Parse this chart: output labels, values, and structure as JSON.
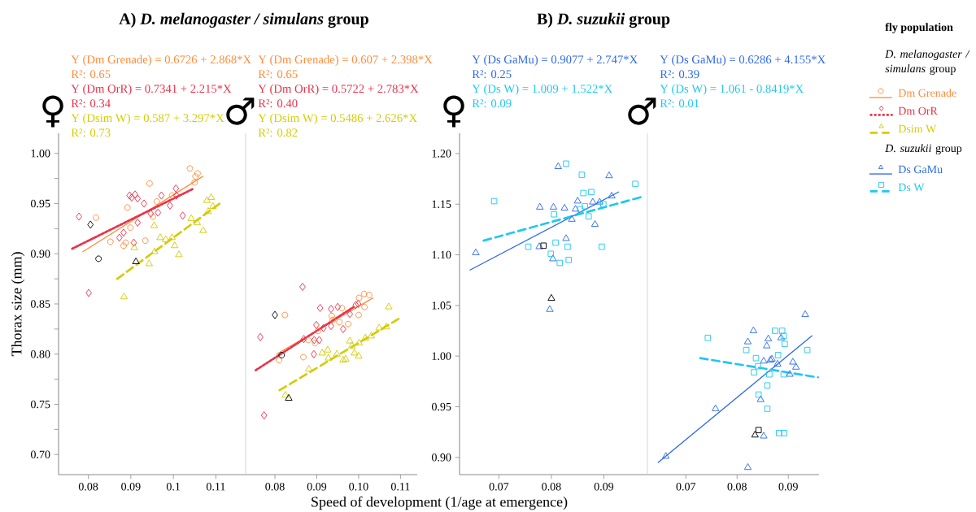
{
  "chart_data": [
    {
      "type": "scatter",
      "title": "A) *D. melanogaster / simulans* group",
      "xlabel": "Speed of development (1/age at emergence)",
      "ylabel": "Thorax size (mm)",
      "annotations": [
        "♀",
        "Y (Dm Grenade) = 0.6726 + 2.868*X",
        "R²: 0.65",
        "Y (Dm OrR) = 0.7341 + 2.215*X",
        "R²: 0.34",
        "Y (Dsim W) = 0.587 + 3.297*X",
        "R²: 0.73"
      ],
      "xlim": [
        0.073,
        0.117
      ],
      "ylim": [
        0.68,
        1.02
      ],
      "xticks": [
        0.08,
        0.09,
        0.1,
        0.11
      ],
      "yticks": [
        {
          "value": 0.7,
          "label": "0.70"
        },
        {
          "value": 0.725,
          "label": null
        },
        0.75,
        {
          "value": 0.775,
          "label": null
        },
        {
          "value": 0.8,
          "label": "0.80"
        },
        {
          "value": 0.825,
          "label": null
        },
        0.85,
        {
          "value": 0.875,
          "label": null
        },
        {
          "value": 0.9,
          "label": "0.90"
        },
        {
          "value": 0.925,
          "label": null
        },
        0.95,
        {
          "value": 0.975,
          "label": null
        },
        {
          "value": 1.0,
          "label": "1.00"
        }
      ],
      "series": [
        {
          "type": "scatter",
          "color": "#ff8c3a",
          "marker": "circle",
          "x": [
            0.0818,
            0.0852,
            0.0883,
            0.0888,
            0.0892,
            0.0899,
            0.0934,
            0.0944,
            0.0952,
            0.0961,
            0.0997,
            0.1039,
            0.105,
            0.1052,
            0.1057
          ],
          "values": [
            0.936,
            0.912,
            0.908,
            0.911,
            0.946,
            0.926,
            0.913,
            0.97,
            0.937,
            0.952,
            0.958,
            0.985,
            0.971,
            0.977,
            0.98
          ]
        },
        {
          "type": "line",
          "color": "#ff8c3a",
          "line_style": "solid",
          "x": [
            0.0787,
            0.1069
          ],
          "values": [
            0.902,
            0.977
          ]
        },
        {
          "type": "scatter",
          "color": "#000000",
          "marker": "circle",
          "x": [
            0.0824
          ],
          "values": [
            0.895
          ]
        },
        {
          "type": "scatter",
          "color": "#e8334a",
          "marker": "diamond",
          "x": [
            0.0778,
            0.0801,
            0.0873,
            0.0883,
            0.0897,
            0.0902,
            0.0907,
            0.091,
            0.0916,
            0.0916,
            0.0931,
            0.0947,
            0.0964,
            0.0972,
            0.0992,
            0.1006,
            0.1007,
            0.1022
          ],
          "values": [
            0.937,
            0.861,
            0.916,
            0.921,
            0.958,
            0.956,
            0.911,
            0.959,
            0.955,
            0.931,
            0.95,
            0.94,
            0.941,
            0.958,
            0.948,
            0.965,
            0.958,
            0.938
          ]
        },
        {
          "type": "line",
          "color": "#e8334a",
          "line_style": "dotted",
          "x": [
            0.0762,
            0.1048
          ],
          "values": [
            0.905,
            0.965
          ]
        },
        {
          "type": "scatter",
          "color": "#000000",
          "marker": "diamond",
          "x": [
            0.0805
          ],
          "values": [
            0.929
          ]
        },
        {
          "type": "scatter",
          "color": "#d4cc00",
          "marker": "triangle",
          "x": [
            0.0884,
            0.0908,
            0.0943,
            0.0955,
            0.0956,
            0.0969,
            0.0982,
            0.0997,
            0.1003,
            0.1013,
            0.1042,
            0.1056,
            0.107,
            0.1079,
            0.1082,
            0.1089,
            0.1093
          ],
          "values": [
            0.857,
            0.906,
            0.89,
            0.928,
            0.902,
            0.916,
            0.914,
            0.916,
            0.908,
            0.899,
            0.935,
            0.931,
            0.923,
            0.953,
            0.942,
            0.956,
            0.947
          ]
        },
        {
          "type": "line",
          "color": "#d4cc00",
          "line_style": "dashed",
          "x": [
            0.0868,
            0.1109
          ],
          "values": [
            0.875,
            0.95
          ]
        },
        {
          "type": "scatter",
          "color": "#000000",
          "marker": "triangle",
          "x": [
            0.0912
          ],
          "values": [
            0.892
          ]
        }
      ]
    },
    {
      "type": "scatter",
      "tick_labels": "x",
      "legend": "right",
      "legend_title": "*D. melanogaster / simulans* group",
      "annotations": [
        "♂",
        "Y (Dm Grenade) = 0.607 + 2.398*X",
        "R²: 0.65",
        "Y (Dm OrR) = 0.5722 + 2.783*X",
        "R²: 0.40",
        "Y (Dsim W) = 0.5486 + 2.626*X",
        "R²: 0.82",
        "fly population"
      ],
      "xlim": [
        0.073,
        0.114
      ],
      "ylim": [
        0.68,
        1.02
      ],
      "xticks": [
        0.08,
        0.09,
        {
          "value": 0.1,
          "label": "0.10"
        },
        0.11
      ],
      "series": [
        {
          "type": "scatter",
          "name": "Dm Grenade",
          "color": "#ff8c3a",
          "marker": "circle",
          "x": [
            0.081,
            0.0824,
            0.0868,
            0.088,
            0.0896,
            0.0903,
            0.0936,
            0.0938,
            0.0954,
            0.096,
            0.0975,
            0.1,
            0.1001,
            0.1013,
            0.1014,
            0.1025
          ],
          "values": [
            0.794,
            0.839,
            0.797,
            0.814,
            0.811,
            0.823,
            0.838,
            0.834,
            0.832,
            0.846,
            0.83,
            0.839,
            0.856,
            0.86,
            0.847,
            0.859
          ]
        },
        {
          "type": "line",
          "color": "#ff8c3a",
          "line_style": "solid",
          "x": [
            0.0804,
            0.1034
          ],
          "values": [
            0.8,
            0.856
          ]
        },
        {
          "type": "scatter",
          "color": "#000000",
          "marker": "circle",
          "x": [
            0.0816
          ],
          "values": [
            0.799
          ]
        },
        {
          "type": "scatter",
          "name": "Dm OrR",
          "color": "#e8334a",
          "marker": "diamond",
          "x": [
            0.0765,
            0.0774,
            0.0866,
            0.0869,
            0.0893,
            0.0894,
            0.0899,
            0.0906,
            0.0908,
            0.0916,
            0.0934,
            0.0934,
            0.095,
            0.0963,
            0.0979,
            0.0993,
            0.0999
          ],
          "values": [
            0.817,
            0.739,
            0.867,
            0.815,
            0.8,
            0.814,
            0.829,
            0.814,
            0.846,
            0.826,
            0.845,
            0.828,
            0.847,
            0.825,
            0.84,
            0.849,
            0.85
          ]
        },
        {
          "type": "line",
          "color": "#e8334a",
          "line_style": "dotted",
          "x": [
            0.0754,
            0.0988
          ],
          "values": [
            0.784,
            0.847
          ]
        },
        {
          "type": "scatter",
          "color": "#000000",
          "marker": "diamond",
          "x": [
            0.08
          ],
          "values": [
            0.839
          ]
        },
        {
          "type": "scatter",
          "name": "Dsim W",
          "color": "#d4cc00",
          "marker": "triangle",
          "x": [
            0.0825,
            0.0881,
            0.0913,
            0.0926,
            0.0928,
            0.0948,
            0.0963,
            0.0969,
            0.0979,
            0.0984,
            0.099,
            0.1,
            0.1001,
            0.1016,
            0.103,
            0.1049,
            0.1066,
            0.1072
          ],
          "values": [
            0.759,
            0.785,
            0.801,
            0.804,
            0.796,
            0.8,
            0.794,
            0.795,
            0.813,
            0.808,
            0.801,
            0.798,
            0.811,
            0.816,
            0.818,
            0.826,
            0.827,
            0.847
          ]
        },
        {
          "type": "line",
          "color": "#d4cc00",
          "line_style": "dashed",
          "x": [
            0.0811,
            0.1099
          ],
          "values": [
            0.764,
            0.836
          ]
        },
        {
          "type": "scatter",
          "color": "#000000",
          "marker": "triangle",
          "x": [
            0.0833
          ],
          "values": [
            0.756
          ]
        }
      ]
    },
    {
      "type": "scatter",
      "title": "B) *D. suzukii* group",
      "annotations": [
        "♀",
        "Y (Ds GaMu) = 0.9077 + 2.747*X",
        "R²: 0.25",
        "Y (Ds W) = 1.009 + 1.522*X",
        "R²: 0.09"
      ],
      "xlim": [
        0.0625,
        0.0983
      ],
      "ylim": [
        0.883,
        1.22
      ],
      "xticks": [
        0.07,
        0.08,
        0.09
      ],
      "yticks": [
        {
          "value": 0.9,
          "label": "0.90"
        },
        0.95,
        {
          "value": 1.0,
          "label": "1.00"
        },
        1.05,
        {
          "value": 1.1,
          "label": "1.10"
        },
        1.15,
        {
          "value": 1.2,
          "label": "1.20"
        }
      ],
      "series": [
        {
          "type": "scatter",
          "color": "#2f6ae8",
          "marker": "triangle",
          "x": [
            0.0656,
            0.0777,
            0.0778,
            0.0797,
            0.0803,
            0.0804,
            0.0813,
            0.0825,
            0.0828,
            0.0839,
            0.0846,
            0.085,
            0.0879,
            0.0883,
            0.0892,
            0.091,
            0.0915
          ],
          "values": [
            1.102,
            1.108,
            1.147,
            1.046,
            1.096,
            1.147,
            1.187,
            1.146,
            1.116,
            1.135,
            1.145,
            1.153,
            1.152,
            1.13,
            1.152,
            1.178,
            1.158
          ]
        },
        {
          "type": "line",
          "color": "#2f6ae8",
          "line_style": "solid",
          "x": [
            0.0645,
            0.0928
          ],
          "values": [
            1.085,
            1.162
          ]
        },
        {
          "type": "scatter",
          "color": "#000000",
          "marker": "triangle",
          "x": [
            0.08
          ],
          "values": [
            1.057
          ]
        },
        {
          "type": "scatter",
          "color": "#1ec8f0",
          "marker": "square",
          "x": [
            0.0691,
            0.0756,
            0.0799,
            0.0805,
            0.0808,
            0.0816,
            0.0828,
            0.0831,
            0.0833,
            0.0855,
            0.0858,
            0.0861,
            0.0864,
            0.0871,
            0.0876,
            0.0896,
            0.0899,
            0.096
          ],
          "values": [
            1.153,
            1.108,
            1.101,
            1.14,
            1.112,
            1.092,
            1.19,
            1.108,
            1.095,
            1.145,
            1.179,
            1.161,
            1.148,
            1.138,
            1.162,
            1.108,
            1.15,
            1.17
          ]
        },
        {
          "type": "line",
          "color": "#1ec8f0",
          "line_style": "dashed",
          "x": [
            0.0671,
            0.0971
          ],
          "values": [
            1.114,
            1.157
          ]
        },
        {
          "type": "scatter",
          "color": "#000000",
          "marker": "square",
          "x": [
            0.0785
          ],
          "values": [
            1.109
          ]
        }
      ]
    },
    {
      "type": "scatter",
      "tick_labels": "x",
      "legend": "right",
      "legend_title": "*D. suzukii* group",
      "annotations": [
        "♂",
        "Y (Ds GaMu) = 0.6286 + 4.155*X",
        "R²: 0.39",
        "Y (Ds W) = 1.061 - 0.8419*X",
        "R²: 0.01"
      ],
      "xlim": [
        0.0625,
        0.096
      ],
      "ylim": [
        0.883,
        1.22
      ],
      "xticks": [
        0.07,
        0.08,
        0.09
      ],
      "series": [
        {
          "type": "scatter",
          "name": "Ds GaMu",
          "color": "#2f6ae8",
          "marker": "triangle",
          "x": [
            0.0661,
            0.0758,
            0.0821,
            0.0821,
            0.0832,
            0.0846,
            0.0852,
            0.0852,
            0.0858,
            0.0861,
            0.0865,
            0.0868,
            0.0879,
            0.0886,
            0.0903,
            0.0909,
            0.0915,
            0.0933
          ],
          "values": [
            0.901,
            0.948,
            1.014,
            0.89,
            1.025,
            0.957,
            0.921,
            0.995,
            1.01,
            1.017,
            0.996,
            0.997,
            0.992,
            1.018,
            0.982,
            0.994,
            0.989,
            1.041
          ]
        },
        {
          "type": "line",
          "color": "#2f6ae8",
          "line_style": "solid",
          "x": [
            0.0646,
            0.0946
          ],
          "values": [
            0.895,
            1.02
          ]
        },
        {
          "type": "scatter",
          "color": "#000000",
          "marker": "triangle",
          "x": [
            0.0835
          ],
          "values": [
            0.922
          ]
        },
        {
          "type": "scatter",
          "name": "Ds W",
          "color": "#1ec8f0",
          "marker": "square",
          "x": [
            0.0743,
            0.0818,
            0.0833,
            0.0837,
            0.0841,
            0.0842,
            0.0859,
            0.0859,
            0.0863,
            0.0874,
            0.088,
            0.0882,
            0.0888,
            0.0891,
            0.0891,
            0.0892,
            0.0893,
            0.0937
          ],
          "values": [
            1.018,
            1.006,
            0.984,
            0.998,
            0.99,
            0.962,
            0.971,
            0.948,
            0.982,
            1.025,
            1.001,
            0.924,
            1.025,
            1.02,
            0.982,
            0.924,
            1.012,
            1.006
          ]
        },
        {
          "type": "line",
          "color": "#1ec8f0",
          "line_style": "dashed",
          "x": [
            0.0728,
            0.0958
          ],
          "values": [
            0.998,
            0.979
          ]
        },
        {
          "type": "scatter",
          "color": "#000000",
          "marker": "square",
          "x": [
            0.0842
          ],
          "values": [
            0.927
          ]
        }
      ]
    }
  ]
}
